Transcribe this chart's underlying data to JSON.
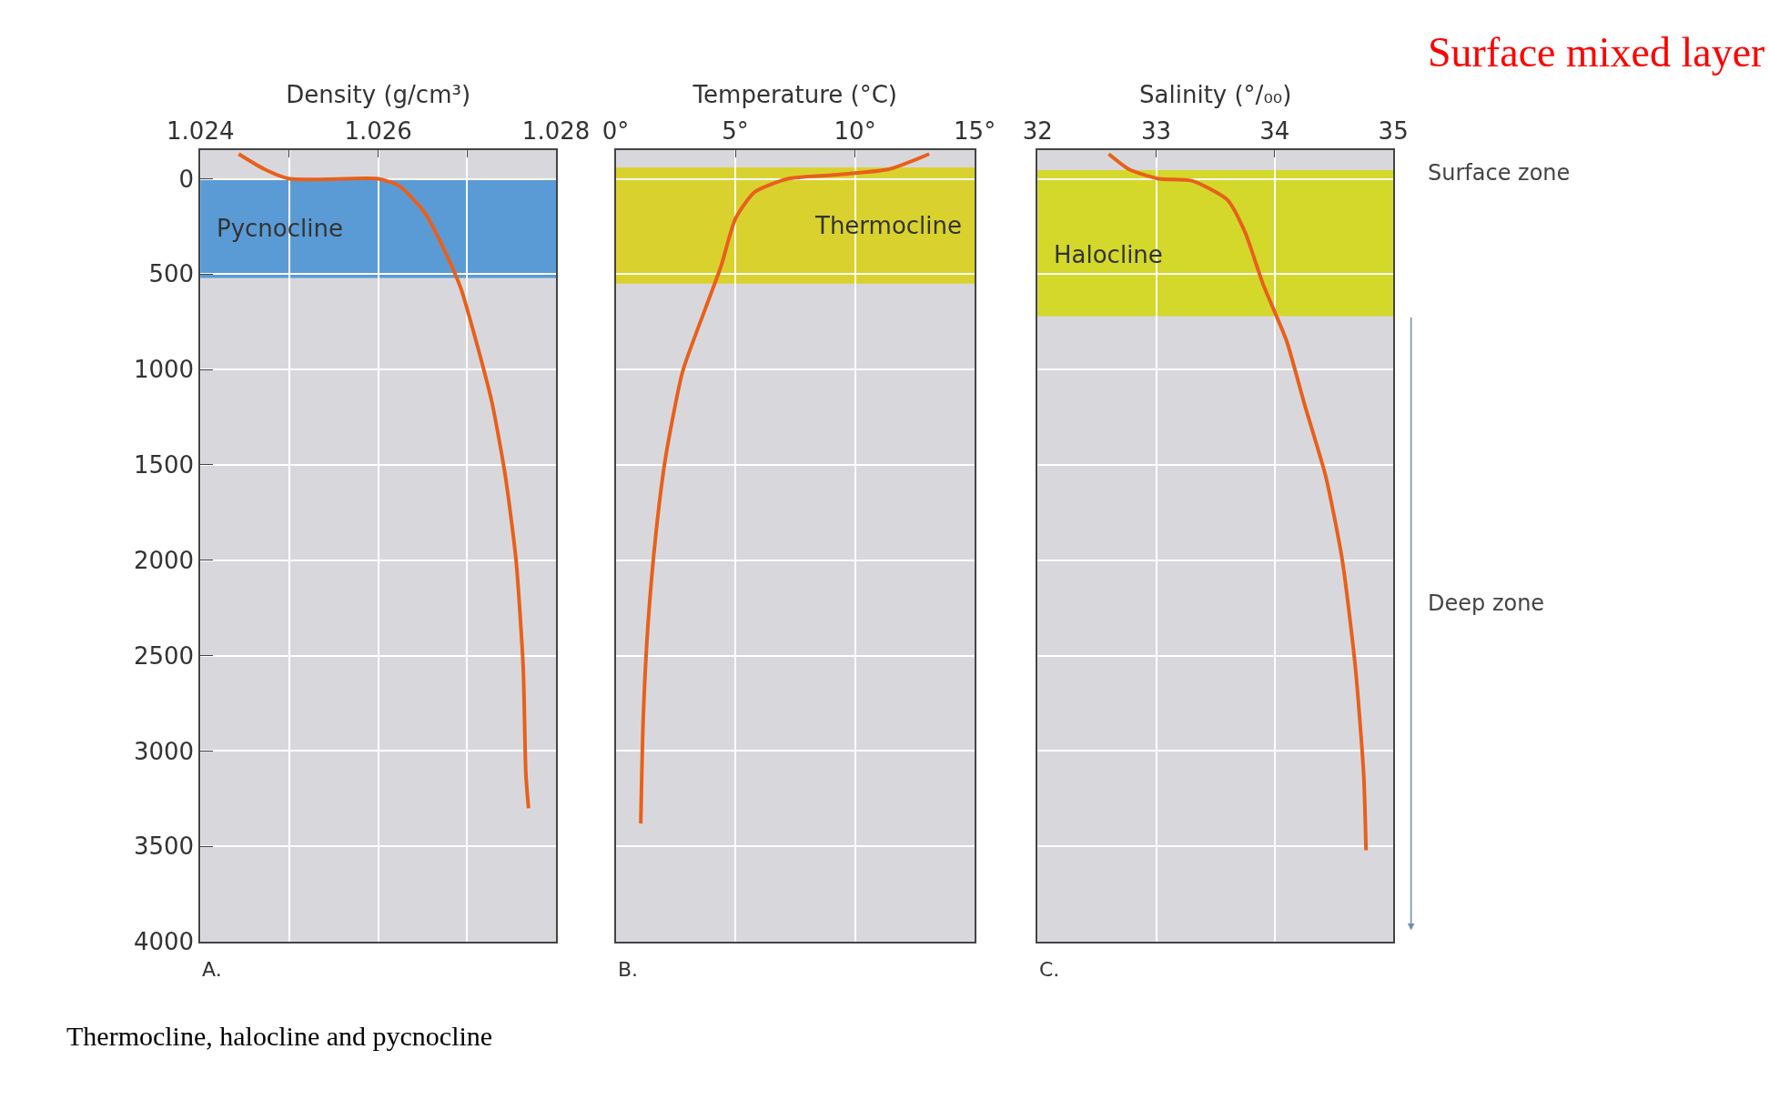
{
  "chart_data": [
    {
      "type": "line",
      "xlabel": "Density (g/cm³)",
      "xlim": [
        1.024,
        1.028
      ],
      "xticks": [
        1.024,
        {
          "value": 1.025,
          "label": null
        },
        1.026,
        {
          "value": 1.027,
          "label": null
        },
        1.028
      ],
      "ylim": [
        4000,
        -150
      ],
      "yticks": [
        0,
        500,
        1000,
        1500,
        2000,
        2500,
        3000,
        3500,
        4000
      ],
      "grid": true,
      "series": [
        {
          "color": "#e8601c",
          "x": [
            1.02443,
            1.02472,
            1.025,
            1.026,
            1.02623,
            1.02652,
            1.02676,
            1.02693,
            1.0271,
            1.02728,
            1.02743,
            1.02755,
            1.02763,
            1.02766,
            1.02769
          ],
          "values": [
            -130,
            -50,
            0,
            0,
            35,
            175,
            390,
            575,
            850,
            1175,
            1560,
            2000,
            2560,
            3120,
            3300
          ]
        }
      ],
      "bands": [
        {
          "axis": "y",
          "from": 0,
          "to": 520,
          "label": "Pycnocline",
          "color": "#5b9bd5"
        }
      ],
      "annotations": [
        "A.",
        "Thermocline, halocline and pycnocline"
      ]
    },
    {
      "type": "line",
      "xlabel": "Temperature (°C)",
      "xlim": [
        0,
        15
      ],
      "xticks": [
        {
          "value": 0,
          "label": "0°"
        },
        {
          "value": 5,
          "label": "5°"
        },
        {
          "value": 10,
          "label": "10°"
        },
        {
          "value": 15,
          "label": "15°"
        }
      ],
      "ylim": [
        4000,
        -150
      ],
      "yticks": [
        0,
        500,
        1000,
        1500,
        2000,
        2500,
        3000,
        3500,
        4000
      ],
      "grid": true,
      "tick_labels": "x",
      "series": [
        {
          "color": "#e8601c",
          "x": [
            13.1,
            11.4,
            9.1,
            7.2,
            5.8,
            5.0,
            4.4,
            3.75,
            2.8,
            2.1,
            1.7,
            1.35,
            1.15,
            1.05
          ],
          "values": [
            -130,
            -50,
            -20,
            0,
            70,
            210,
            460,
            680,
            1010,
            1450,
            1840,
            2340,
            2840,
            3380
          ]
        }
      ],
      "bands": [
        {
          "axis": "y",
          "from": -60,
          "to": 550,
          "label": "Thermocline",
          "color": "#d9d22e"
        }
      ],
      "annotations": [
        "B."
      ]
    },
    {
      "type": "line",
      "xlabel": "Salinity (°/₀₀)",
      "xlim": [
        32,
        35
      ],
      "xticks": [
        32,
        33,
        34,
        35
      ],
      "ylim": [
        4000,
        -150
      ],
      "yticks": [
        0,
        500,
        1000,
        1500,
        2000,
        2500,
        3000,
        3500,
        4000
      ],
      "grid": true,
      "tick_labels": "x",
      "series": [
        {
          "color": "#e8601c",
          "x": [
            32.6,
            32.77,
            33.02,
            33.3,
            33.6,
            33.75,
            33.9,
            34.1,
            34.25,
            34.43,
            34.57,
            34.68,
            34.75,
            34.77
          ],
          "values": [
            -130,
            -50,
            0,
            10,
            110,
            280,
            550,
            850,
            1180,
            1560,
            2000,
            2560,
            3120,
            3520
          ]
        }
      ],
      "bands": [
        {
          "axis": "y",
          "from": -45,
          "to": 720,
          "label": "Halocline",
          "color": "#d4d82a"
        }
      ],
      "annotations": [
        "C.",
        "Surface zone",
        "Deep zone",
        "Surface mixed layer"
      ]
    }
  ]
}
